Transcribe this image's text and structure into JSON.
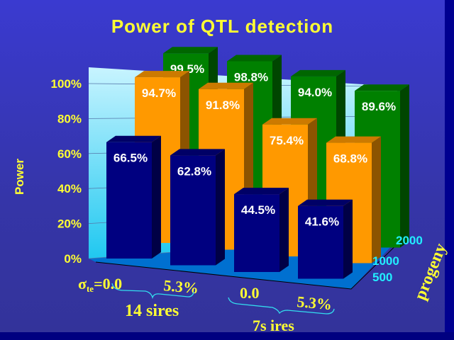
{
  "chart_data": {
    "type": "bar",
    "title": "Power of QTL detection",
    "ylabel": "Power",
    "depth_label": "progeny",
    "ylim": [
      0,
      100
    ],
    "y_ticks": [
      "0%",
      "20%",
      "40%",
      "60%",
      "80%",
      "100%"
    ],
    "categories": [
      "σte=0.0",
      "5.3%",
      "0.0",
      "5.3%"
    ],
    "category_groups": [
      {
        "label": "14 sires"
      },
      {
        "label": "7s ires"
      }
    ],
    "series": [
      {
        "name": "500",
        "color": "#000080",
        "values": [
          66.5,
          62.8,
          44.5,
          41.6
        ],
        "labels": [
          "66.5%",
          "62.8%",
          "44.5%",
          "41.6%"
        ]
      },
      {
        "name": "1000",
        "color": "#ff9900",
        "values": [
          94.7,
          91.8,
          75.4,
          68.8
        ],
        "labels": [
          "94.7%",
          "91.8%",
          "75.4%",
          "68.8%"
        ]
      },
      {
        "name": "2000",
        "color": "#008000",
        "values": [
          99.5,
          98.8,
          94.0,
          89.6
        ],
        "labels": [
          "99.5%",
          "98.8%",
          "94.0%",
          "89.6%"
        ]
      }
    ],
    "grid": true
  },
  "labels": {
    "sigma": "σ",
    "sigma_sub": "te",
    "first_cat": "=0.0",
    "cat2": "5.3%",
    "cat3": "0.0",
    "cat4": "5.3%",
    "group1": "14 sires",
    "group2": "7s ires"
  }
}
